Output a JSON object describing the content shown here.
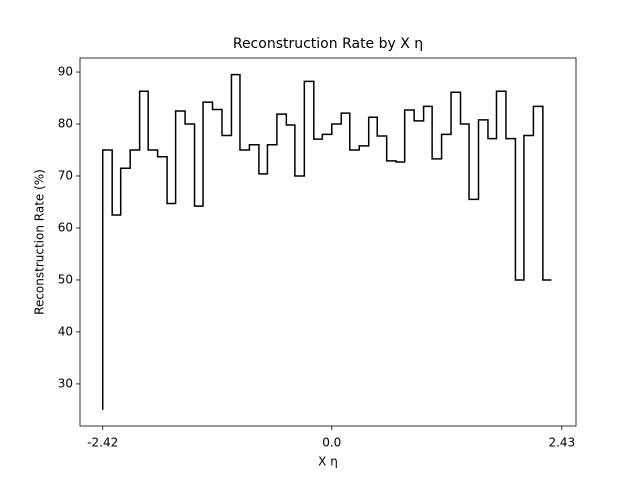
{
  "chart_data": {
    "type": "line",
    "step": "pre",
    "title": "Reconstruction Rate by X η",
    "xlabel": "X η",
    "ylabel": "Reconstruction Rate (%)",
    "x": [
      -2.42,
      -2.32,
      -2.23,
      -2.13,
      -2.03,
      -1.94,
      -1.84,
      -1.74,
      -1.65,
      -1.55,
      -1.45,
      -1.36,
      -1.26,
      -1.16,
      -1.06,
      -0.97,
      -0.87,
      -0.77,
      -0.68,
      -0.58,
      -0.48,
      -0.39,
      -0.29,
      -0.19,
      -0.1,
      0,
      0.1,
      0.19,
      0.29,
      0.39,
      0.48,
      0.58,
      0.68,
      0.77,
      0.87,
      0.97,
      1.06,
      1.16,
      1.26,
      1.36,
      1.45,
      1.55,
      1.65,
      1.74,
      1.84,
      1.94,
      2.03,
      2.13,
      2.23,
      2.32
    ],
    "values": [
      25,
      75,
      62.5,
      71.5,
      75,
      86.3,
      75,
      73.7,
      64.7,
      82.5,
      80,
      64.2,
      84.2,
      82.8,
      77.8,
      89.5,
      75,
      76,
      70.4,
      76,
      81.9,
      79.8,
      70,
      88.2,
      77.1,
      78,
      80,
      82.1,
      75,
      75.8,
      81.3,
      77.7,
      72.9,
      72.7,
      82.7,
      80.6,
      83.4,
      73.3,
      78,
      86.1,
      80,
      65.5,
      80.8,
      77.2,
      86.3,
      77.2,
      50,
      77.8,
      83.4,
      50
    ],
    "color": "#000000",
    "xlim": [
      -2.66,
      2.58
    ],
    "xticks": [
      -2.42,
      {
        "value": 0,
        "label": "0.0"
      },
      2.43
    ],
    "ylim": [
      21.9,
      92.7
    ],
    "yticks": [
      30,
      40,
      50,
      60,
      70,
      80,
      90
    ],
    "grid": false
  }
}
